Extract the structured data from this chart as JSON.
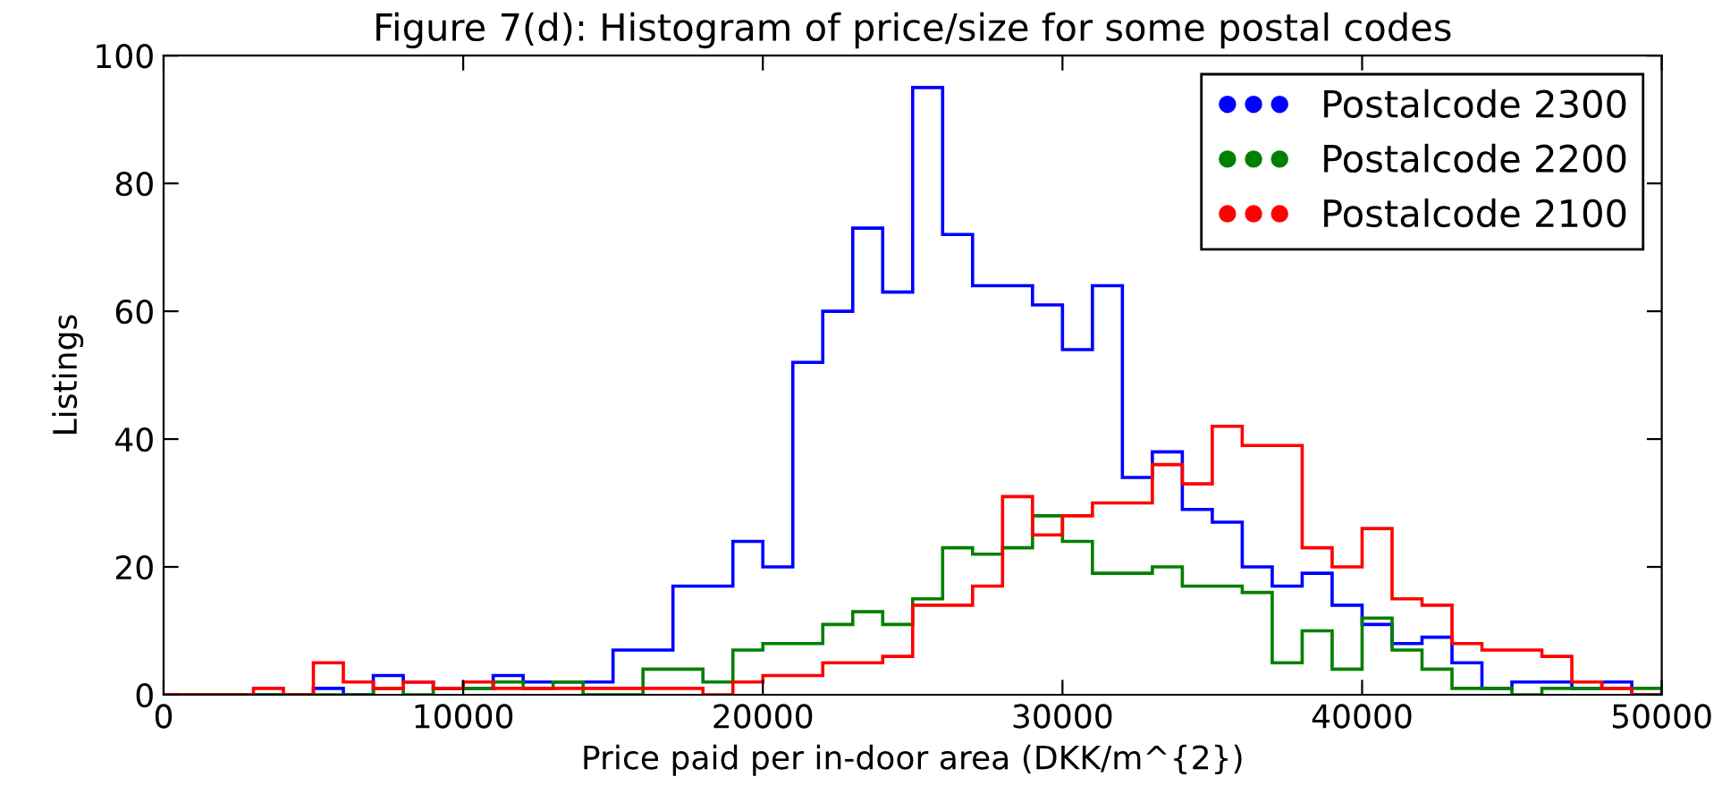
{
  "chart_data": {
    "type": "histogram",
    "title": "Figure 7(d): Histogram of price/size for some postal codes",
    "xlabel": "Price paid per in-door area (DKK/m^{2})",
    "ylabel": "Listings",
    "bins": [
      0,
      1000,
      2000,
      3000,
      4000,
      5000,
      6000,
      7000,
      8000,
      9000,
      10000,
      11000,
      12000,
      13000,
      14000,
      15000,
      16000,
      17000,
      18000,
      19000,
      20000,
      21000,
      22000,
      23000,
      24000,
      25000,
      26000,
      27000,
      28000,
      29000,
      30000,
      31000,
      32000,
      33000,
      34000,
      35000,
      36000,
      37000,
      38000,
      39000,
      40000,
      41000,
      42000,
      43000,
      44000,
      45000,
      46000,
      47000,
      48000,
      49000,
      50000
    ],
    "series": [
      {
        "name": "Postalcode 2300",
        "color": "#0000ff",
        "values": [
          0,
          0,
          0,
          0,
          0,
          1,
          0,
          3,
          2,
          1,
          1,
          3,
          2,
          2,
          2,
          7,
          7,
          17,
          17,
          24,
          20,
          52,
          60,
          73,
          63,
          95,
          72,
          64,
          64,
          61,
          54,
          64,
          34,
          38,
          29,
          27,
          20,
          17,
          19,
          14,
          11,
          8,
          9,
          5,
          1,
          2,
          2,
          1,
          2,
          0
        ]
      },
      {
        "name": "Postalcode 2200",
        "color": "#008000",
        "values": [
          0,
          0,
          0,
          0,
          0,
          0,
          0,
          1,
          0,
          1,
          1,
          2,
          1,
          2,
          0,
          0,
          4,
          4,
          2,
          7,
          8,
          8,
          11,
          13,
          11,
          15,
          23,
          22,
          23,
          28,
          24,
          19,
          19,
          20,
          17,
          17,
          16,
          5,
          10,
          4,
          12,
          7,
          4,
          1,
          1,
          0,
          1,
          1,
          1,
          1
        ]
      },
      {
        "name": "Postalcode 2100",
        "color": "#ff0000",
        "values": [
          0,
          0,
          0,
          1,
          0,
          5,
          2,
          1,
          2,
          1,
          2,
          1,
          1,
          1,
          1,
          1,
          1,
          1,
          0,
          2,
          3,
          3,
          5,
          5,
          6,
          14,
          14,
          17,
          31,
          25,
          28,
          30,
          30,
          36,
          33,
          42,
          39,
          39,
          23,
          20,
          26,
          15,
          14,
          8,
          7,
          7,
          6,
          2,
          1,
          0
        ]
      }
    ],
    "xlim": [
      0,
      50000
    ],
    "xticks": [
      0,
      10000,
      20000,
      30000,
      40000,
      50000
    ],
    "ylim": [
      0,
      100
    ],
    "yticks": [
      0,
      20,
      40,
      60,
      80,
      100
    ],
    "grid": false,
    "legend": "top right",
    "marker": "circle"
  }
}
